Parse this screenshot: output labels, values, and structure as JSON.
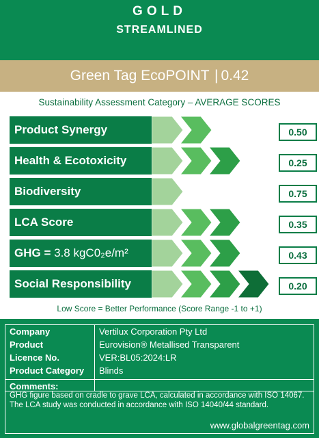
{
  "header": {
    "tier": "GOLD",
    "tier_sub": "STREAMLINED"
  },
  "ecopoint": {
    "label": "Green Tag EcoPOINT",
    "separator": "|",
    "value": "0.42"
  },
  "subtitle": "Sustainability Assessment Category – AVERAGE SCORES",
  "categories": [
    {
      "label": "Product Synergy",
      "score": "0.50",
      "filled": 2
    },
    {
      "label": "Health & Ecotoxicity",
      "score": "0.25",
      "filled": 3
    },
    {
      "label": "Biodiversity",
      "score": "0.75",
      "filled": 1
    },
    {
      "label": "LCA Score",
      "score": "0.35",
      "filled": 3
    },
    {
      "label_prefix": "GHG = ",
      "label": "3.8 kgC0₂e/m²",
      "score": "0.43",
      "filled": 3
    },
    {
      "label": "Social Responsibility",
      "score": "0.20",
      "filled": 4
    }
  ],
  "colors": {
    "level1": "#a3d39b",
    "level2": "#59bd5f",
    "level3": "#2d9f48",
    "level4": "#0e6e37",
    "empty": "#ffffff",
    "brand": "#0a8a52",
    "gold": "#c7b182"
  },
  "footnote": "Low Score = Better Performance (Score Range -1 to +1)",
  "details": {
    "company_label": "Company",
    "company_value": "Vertilux Corporation Pty Ltd",
    "product_label": "Product",
    "product_value": "Eurovision® Metallised Transparent",
    "licence_label": "Licence No.",
    "licence_value": "VER:BL05:2024:LR",
    "category_label": "Product Category",
    "category_value": "Blinds"
  },
  "comments": {
    "heading": "Comments:",
    "text": "GHG figure based on cradle to grave LCA, calculated in accordance with ISO 14067. The LCA study was conducted in accordance with ISO 14040/44 standard."
  },
  "website": "www.globalgreentag.com"
}
